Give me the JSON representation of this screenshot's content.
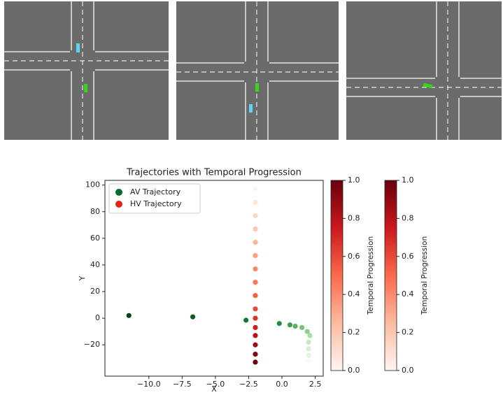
{
  "chart_data": {
    "type": "scatter",
    "title": "Trajectories with Temporal Progression",
    "x_label": "X",
    "y_label": "Y",
    "xlim": [
      -13.3,
      3.1
    ],
    "ylim": [
      -43.5,
      103.5
    ],
    "xticks": [
      {
        "value": -10,
        "label": "−10.0"
      },
      {
        "value": -7.5,
        "label": "−7.5"
      },
      {
        "value": -5,
        "label": "−5.0"
      },
      {
        "value": -2.5,
        "label": "−2.5"
      },
      {
        "value": 0,
        "label": "0.0"
      },
      {
        "value": 2.5,
        "label": "2.5"
      }
    ],
    "yticks": [
      {
        "value": -20,
        "label": "−20"
      },
      0,
      20,
      40,
      60,
      80,
      100
    ],
    "legend": "upper left",
    "series": [
      {
        "name": "AV Trajectory",
        "color": "#006d2c",
        "colormap": [
          "#f7fcf5",
          "#c7e9c0",
          "#74c476",
          "#238b45",
          "#00441b"
        ],
        "x": [
          2.0,
          2.0,
          2.0,
          2.0,
          2.1,
          1.9,
          1.5,
          1.0,
          0.6,
          -0.2,
          -2.7,
          -6.7,
          -11.5
        ],
        "y": [
          -32,
          -28,
          -23,
          -18,
          -13,
          -10,
          -7,
          -6,
          -5,
          -4,
          -1.5,
          1,
          2
        ]
      },
      {
        "name": "HV Trajectory",
        "color": "#e8211c",
        "colormap": [
          "#fff5f0",
          "#fcbba1",
          "#fb6a4a",
          "#cb181d",
          "#67000d"
        ],
        "x": [
          -2,
          -2,
          -2,
          -2,
          -2,
          -2,
          -2,
          -2,
          -2,
          -2,
          -2,
          -2,
          -2,
          -2,
          -2,
          -2
        ],
        "y": [
          97,
          87,
          77,
          67,
          57,
          47,
          37,
          27,
          17,
          7,
          0,
          -7,
          -13,
          -20,
          -27,
          -33
        ]
      }
    ],
    "colorbars": [
      {
        "label": "Temporal Progression",
        "lim": [
          0,
          1
        ],
        "colormap": [
          "#fff5f0",
          "#fcbba1",
          "#fb6a4a",
          "#cb181d",
          "#67000d"
        ],
        "ticks": [
          {
            "value": 0,
            "label": "0.0"
          },
          {
            "value": 0.2,
            "label": "0.2"
          },
          {
            "value": 0.4,
            "label": "0.4"
          },
          {
            "value": 0.6,
            "label": "0.6"
          },
          {
            "value": 0.8,
            "label": "0.8"
          },
          {
            "value": 1,
            "label": "1.0"
          }
        ]
      },
      {
        "label": "Temporal Progression",
        "lim": [
          0,
          1
        ],
        "colormap": [
          "#fff5f0",
          "#fcbba1",
          "#fb6a4a",
          "#cb181d",
          "#67000d"
        ],
        "ticks": [
          {
            "value": 0,
            "label": "0.0"
          },
          {
            "value": 0.2,
            "label": "0.2"
          },
          {
            "value": 0.4,
            "label": "0.4"
          },
          {
            "value": 0.6,
            "label": "0.6"
          },
          {
            "value": 0.8,
            "label": "0.8"
          },
          {
            "value": 1,
            "label": "1.0"
          }
        ]
      }
    ]
  }
}
